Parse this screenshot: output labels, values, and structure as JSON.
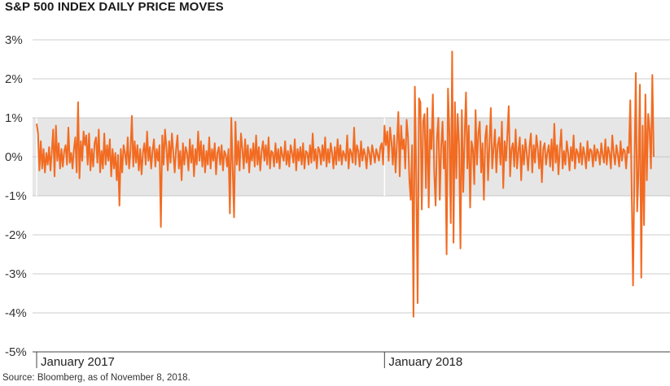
{
  "title": "S&P 500 INDEX DAILY PRICE MOVES",
  "source": "Source: Bloomberg, as of November 8, 2018.",
  "colors": {
    "series": "#f26b21",
    "band": "#e6e6e6",
    "grid": "#bdbdbd",
    "axis": "#444444"
  },
  "chart_data": {
    "type": "line",
    "title": "S&P 500 INDEX DAILY PRICE MOVES",
    "xlabel": "",
    "ylabel": "",
    "ylim": [
      -5,
      3
    ],
    "yticks": [
      3,
      2,
      1,
      0,
      -1,
      -2,
      -3,
      -4,
      -5
    ],
    "ytick_labels": [
      "3%",
      "2%",
      "1%",
      "0%",
      "-1%",
      "-2%",
      "-3%",
      "-4%",
      "-5%"
    ],
    "xtick_labels": [
      "January 2017",
      "January 2018"
    ],
    "xtick_positions": [
      0,
      252
    ],
    "shaded_band": [
      -1,
      1
    ],
    "grid": true,
    "series": [
      {
        "values": [
          0.85,
          0.6,
          -0.35,
          0.4,
          -0.3,
          0.2,
          -0.4,
          0.1,
          -0.2,
          0.25,
          -0.35,
          0.15,
          0.7,
          -0.5,
          0.8,
          -0.1,
          0.35,
          -0.3,
          0.2,
          -0.25,
          0.15,
          0.3,
          -0.2,
          0.75,
          -0.15,
          0.1,
          -0.3,
          0.2,
          0.5,
          -0.4,
          1.4,
          -0.55,
          0.4,
          -0.1,
          0.65,
          0.3,
          0.55,
          -0.2,
          0.6,
          -0.35,
          0.2,
          -0.25,
          0.35,
          0.5,
          -0.15,
          0.7,
          -0.4,
          0.15,
          -0.3,
          0.6,
          -0.2,
          0.3,
          -0.1,
          0.45,
          -0.5,
          0.2,
          -0.3,
          0.1,
          -0.6,
          0.05,
          -1.25,
          0.2,
          -0.4,
          0.3,
          0.1,
          -0.2,
          0.5,
          -0.3,
          0.15,
          1.05,
          -0.25,
          0.4,
          -0.15,
          0.3,
          -0.35,
          0.2,
          -0.45,
          0.1,
          0.35,
          -0.2,
          0.65,
          -0.1,
          0.25,
          -0.3,
          0.15,
          0.45,
          -0.25,
          0.2,
          -0.1,
          0.3,
          -1.8,
          0.55,
          -0.2,
          0.7,
          0.25,
          -0.35,
          0.4,
          -0.15,
          0.6,
          0.1,
          -0.4,
          0.2,
          0.55,
          -0.3,
          0.15,
          -0.6,
          0.35,
          -0.2,
          0.25,
          0.1,
          -0.35,
          0.45,
          -0.15,
          0.3,
          -0.5,
          0.2,
          -0.2,
          0.65,
          -0.1,
          0.4,
          -0.25,
          0.3,
          -0.4,
          0.15,
          -0.2,
          0.5,
          -0.3,
          0.2,
          -0.1,
          0.35,
          -0.45,
          0.1,
          0.25,
          -0.2,
          0.3,
          -0.35,
          0.15,
          0.05,
          -0.25,
          0.2,
          -1.45,
          1.0,
          -0.3,
          -1.55,
          0.9,
          -0.2,
          0.4,
          -0.35,
          0.6,
          0.2,
          -0.3,
          0.45,
          -0.15,
          0.3,
          -0.4,
          0.2,
          -0.1,
          0.35,
          -0.25,
          0.55,
          -0.2,
          0.25,
          -0.35,
          0.15,
          0.4,
          -0.1,
          0.3,
          -0.2,
          0.5,
          -0.3,
          0.15,
          0.1,
          -0.25,
          0.35,
          -0.15,
          0.2,
          -0.3,
          0.25,
          0.05,
          -0.1,
          0.4,
          -0.2,
          0.15,
          -0.25,
          0.3,
          0.1,
          -0.15,
          0.45,
          -0.35,
          0.2,
          -0.1,
          0.25,
          -0.2,
          0.35,
          -0.3,
          0.15,
          0.1,
          -0.2,
          0.3,
          -0.15,
          0.6,
          -0.1,
          0.2,
          -0.3,
          0.25,
          0.15,
          -0.2,
          0.3,
          -0.1,
          0.5,
          -0.25,
          0.2,
          -0.15,
          0.35,
          0.1,
          -0.3,
          0.25,
          -0.2,
          0.45,
          -0.1,
          0.3,
          -0.2,
          0.15,
          0.05,
          -0.1,
          0.55,
          -0.3,
          0.2,
          0.1,
          -0.15,
          0.75,
          -0.2,
          0.3,
          0.15,
          -0.25,
          0.4,
          -0.1,
          0.2,
          0.05,
          -0.3,
          0.25,
          0.1,
          -0.2,
          0.3,
          0.1,
          -0.15,
          0.2,
          0.05,
          -0.1,
          0.25,
          0.35,
          -0.2,
          0.8,
          0.3,
          0.65,
          -0.1,
          0.75,
          0.4,
          -0.2,
          0.55,
          -0.4,
          0.35,
          1.15,
          -0.5,
          0.8,
          0.2,
          0.45,
          -0.3,
          0.95,
          0.5,
          -0.6,
          -1.1,
          0.3,
          -4.1,
          1.8,
          -0.5,
          -3.75,
          1.5,
          1.4,
          -1.35,
          0.9,
          1.1,
          -0.8,
          1.25,
          -1.3,
          0.7,
          0.2,
          1.6,
          -0.4,
          -1.25,
          0.5,
          1.0,
          -1.1,
          0.25,
          0.9,
          -0.3,
          0.4,
          -2.5,
          1.75,
          0.6,
          -1.7,
          2.7,
          -2.2,
          1.4,
          -0.55,
          1.1,
          0.3,
          -2.35,
          1.2,
          -0.9,
          0.5,
          1.65,
          -0.3,
          0.8,
          -1.3,
          0.4,
          0.2,
          -0.7,
          1.2,
          -0.2,
          0.6,
          0.9,
          -0.4,
          0.35,
          -1.1,
          0.5,
          0.8,
          -0.6,
          0.3,
          1.25,
          -0.3,
          0.2,
          0.7,
          -0.4,
          0.3,
          0.5,
          -0.2,
          0.9,
          -0.8,
          0.4,
          -0.1,
          0.6,
          1.3,
          -0.5,
          0.2,
          0.35,
          -0.25,
          0.7,
          -0.3,
          0.15,
          0.5,
          -0.6,
          0.3,
          -0.2,
          0.45,
          0.1,
          -0.35,
          0.25,
          0.6,
          -0.4,
          0.3,
          -0.15,
          0.55,
          0.2,
          -0.3,
          0.4,
          -0.65,
          0.2,
          0.35,
          -0.2,
          0.1,
          0.3,
          -0.25,
          0.45,
          -0.35,
          0.85,
          -0.15,
          0.3,
          -0.45,
          0.2,
          0.7,
          -0.3,
          0.15,
          -0.2,
          0.4,
          0.1,
          -0.35,
          0.25,
          -0.1,
          0.55,
          -0.3,
          0.2,
          0.1,
          -0.15,
          0.35,
          -0.2,
          0.25,
          0.05,
          -0.3,
          0.4,
          -0.1,
          0.2,
          0.15,
          -0.25,
          0.3,
          -0.1,
          0.2,
          0.1,
          -0.2,
          0.35,
          0.05,
          -0.15,
          0.45,
          -0.2,
          0.25,
          0.1,
          -0.3,
          0.55,
          0.1,
          -0.2,
          0.3,
          0.05,
          -0.25,
          0.4,
          -0.1,
          0.2,
          0.15,
          -0.3,
          0.25,
          0.1,
          1.45,
          -0.8,
          -3.3,
          -0.3,
          2.15,
          -1.4,
          -0.4,
          1.85,
          -3.1,
          0.8,
          -1.75,
          1.6,
          -0.6,
          1.1,
          0.7,
          -0.3,
          2.1,
          0.0
        ]
      }
    ]
  }
}
